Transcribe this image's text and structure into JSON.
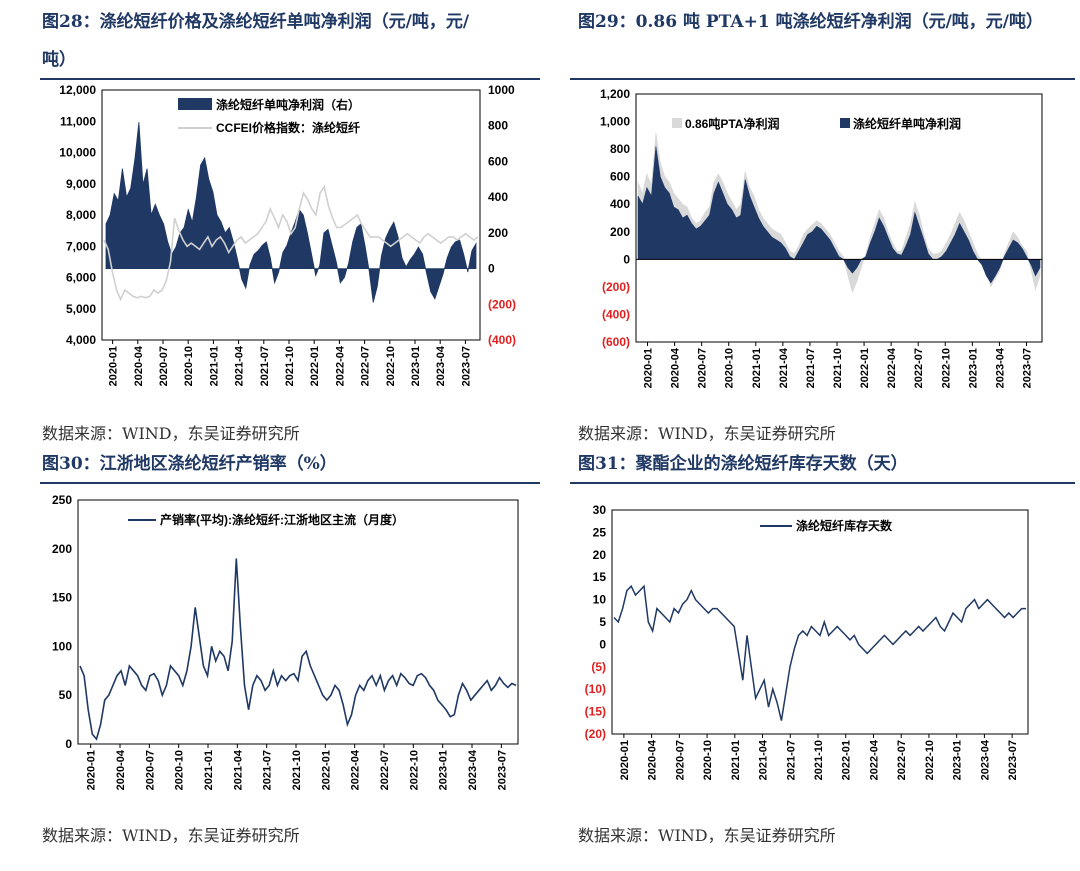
{
  "page": {
    "sources": [
      "数据来源：WIND，东吴证券研究所",
      "数据来源：WIND，东吴证券研究所",
      "数据来源：WIND，东吴证券研究所",
      "数据来源：WIND，东吴证券研究所"
    ]
  },
  "chart_data": [
    {
      "id": "fig28",
      "heading": "图28：涤纶短纤价格及涤纶短纤单吨净利润（元/吨，元/",
      "heading_cont": "吨）",
      "type": "area+line",
      "series": [
        {
          "name": "涤纶短纤单吨净利润（右）",
          "kind": "area",
          "axis": "right",
          "color": "#1f3864",
          "values": [
            250,
            300,
            420,
            380,
            560,
            400,
            450,
            610,
            820,
            470,
            560,
            300,
            360,
            300,
            250,
            150,
            80,
            120,
            200,
            230,
            330,
            260,
            400,
            580,
            620,
            500,
            430,
            300,
            260,
            200,
            230,
            150,
            50,
            -60,
            -110,
            20,
            80,
            100,
            130,
            150,
            60,
            -80,
            -20,
            90,
            130,
            200,
            260,
            330,
            300,
            200,
            80,
            -40,
            20,
            200,
            220,
            130,
            40,
            -80,
            -50,
            30,
            150,
            230,
            250,
            130,
            -10,
            -190,
            -100,
            70,
            170,
            220,
            260,
            180,
            60,
            10,
            50,
            80,
            120,
            80,
            -30,
            -130,
            -170,
            -100,
            -30,
            60,
            120,
            150,
            160,
            80,
            -20,
            100,
            140
          ]
        },
        {
          "name": "CCFEI价格指数：涤纶短纤",
          "kind": "line",
          "axis": "left",
          "color": "#d0d0d0",
          "values": [
            7200,
            6900,
            6200,
            5600,
            5300,
            5600,
            5500,
            5400,
            5350,
            5400,
            5350,
            5400,
            5600,
            5500,
            5600,
            5900,
            6500,
            7900,
            7500,
            7200,
            7000,
            7100,
            7000,
            6900,
            7100,
            7300,
            7000,
            7200,
            7300,
            7100,
            6800,
            7000,
            7200,
            7300,
            7100,
            7200,
            7300,
            7400,
            7600,
            7800,
            8200,
            7900,
            7600,
            8000,
            7800,
            7400,
            7600,
            8200,
            8700,
            8500,
            8200,
            8000,
            8700,
            8900,
            8300,
            7900,
            7600,
            7600,
            7700,
            7800,
            7900,
            8000,
            7700,
            7500,
            7300,
            7300,
            7300,
            7200,
            7100,
            7000,
            7100,
            7200,
            7300,
            7400,
            7300,
            7200,
            7100,
            7300,
            7400,
            7300,
            7200,
            7100,
            7200,
            7300,
            7300,
            7200,
            7300,
            7400,
            7300,
            7200,
            7300
          ]
        }
      ],
      "y_left": {
        "min": 4000,
        "max": 12000,
        "ticks": [
          "4,000",
          "5,000",
          "6,000",
          "7,000",
          "8,000",
          "9,000",
          "10,000",
          "11,000",
          "12,000"
        ]
      },
      "y_right": {
        "min": -400,
        "max": 1000,
        "ticks": [
          "(400)",
          "(200)",
          "0",
          "200",
          "400",
          "600",
          "800",
          "1000"
        ]
      },
      "x_ticks": [
        "2020-01",
        "2020-04",
        "2020-07",
        "2020-10",
        "2021-01",
        "2021-04",
        "2021-07",
        "2021-10",
        "2022-01",
        "2022-04",
        "2022-07",
        "2022-10",
        "2023-01",
        "2023-04",
        "2023-07"
      ]
    },
    {
      "id": "fig29",
      "heading": "图29：0.86 吨 PTA+1 吨涤纶短纤净利润（元/吨，元/吨）",
      "type": "area",
      "series": [
        {
          "name": "0.86吨PTA净利润",
          "kind": "area",
          "color": "#d9d9d9",
          "values": [
            560,
            480,
            620,
            540,
            920,
            700,
            600,
            560,
            480,
            440,
            400,
            380,
            300,
            260,
            280,
            340,
            380,
            560,
            620,
            560,
            480,
            420,
            360,
            400,
            640,
            520,
            460,
            360,
            300,
            260,
            220,
            200,
            180,
            120,
            60,
            40,
            100,
            180,
            220,
            250,
            280,
            260,
            220,
            180,
            120,
            60,
            20,
            -120,
            -240,
            -160,
            -60,
            40,
            160,
            260,
            360,
            300,
            200,
            120,
            60,
            60,
            160,
            260,
            420,
            320,
            180,
            80,
            40,
            40,
            60,
            120,
            180,
            260,
            340,
            280,
            200,
            120,
            40,
            -20,
            -100,
            -200,
            -140,
            -80,
            40,
            120,
            200,
            160,
            100,
            60,
            -80,
            -220,
            -120
          ]
        },
        {
          "name": "涤纶短纤单吨净利润",
          "kind": "area",
          "color": "#1f3864",
          "values": [
            460,
            400,
            520,
            460,
            820,
            600,
            520,
            480,
            380,
            360,
            300,
            320,
            260,
            220,
            240,
            280,
            320,
            480,
            560,
            480,
            400,
            360,
            300,
            320,
            580,
            460,
            380,
            300,
            240,
            200,
            160,
            140,
            120,
            80,
            20,
            0,
            60,
            120,
            180,
            200,
            240,
            220,
            180,
            140,
            80,
            20,
            0,
            -60,
            -100,
            -60,
            0,
            20,
            120,
            200,
            300,
            240,
            160,
            80,
            40,
            30,
            100,
            180,
            340,
            240,
            140,
            40,
            0,
            0,
            20,
            60,
            120,
            180,
            260,
            200,
            140,
            60,
            0,
            -40,
            -120,
            -170,
            -120,
            -60,
            20,
            80,
            140,
            120,
            80,
            20,
            -40,
            -120,
            -60
          ]
        }
      ],
      "y": {
        "min": -600,
        "max": 1200,
        "ticks": [
          "(600)",
          "(400)",
          "(200)",
          "0",
          "200",
          "400",
          "600",
          "800",
          "1,000",
          "1,200"
        ]
      },
      "x_ticks": [
        "2020-01",
        "2020-04",
        "2020-07",
        "2020-10",
        "2021-01",
        "2021-04",
        "2021-07",
        "2021-10",
        "2022-01",
        "2022-04",
        "2022-07",
        "2022-10",
        "2023-01",
        "2023-04",
        "2023-07"
      ]
    },
    {
      "id": "fig30",
      "heading": "图30：江浙地区涤纶短纤产销率（%）",
      "type": "line",
      "series": [
        {
          "name": "产销率(平均):涤纶短纤:江浙地区主流（月度）",
          "color": "#1f3864",
          "values": [
            80,
            70,
            35,
            10,
            5,
            20,
            45,
            50,
            60,
            70,
            75,
            60,
            80,
            75,
            70,
            60,
            55,
            70,
            72,
            65,
            50,
            60,
            80,
            75,
            70,
            60,
            75,
            100,
            140,
            110,
            80,
            70,
            100,
            85,
            95,
            90,
            75,
            105,
            190,
            120,
            60,
            35,
            60,
            70,
            65,
            55,
            60,
            75,
            60,
            70,
            65,
            70,
            72,
            65,
            90,
            95,
            80,
            70,
            60,
            50,
            45,
            50,
            60,
            55,
            40,
            20,
            30,
            50,
            60,
            55,
            65,
            70,
            60,
            70,
            55,
            65,
            70,
            60,
            72,
            68,
            62,
            60,
            70,
            72,
            68,
            60,
            55,
            45,
            40,
            35,
            28,
            30,
            50,
            62,
            55,
            45,
            50,
            55,
            60,
            65,
            55,
            60,
            68,
            62,
            58,
            62,
            60
          ]
        }
      ],
      "y": {
        "min": 0,
        "max": 250,
        "ticks": [
          "0",
          "50",
          "100",
          "150",
          "200",
          "250"
        ]
      },
      "x_ticks": [
        "2020-01",
        "2020-04",
        "2020-07",
        "2020-10",
        "2021-01",
        "2021-04",
        "2021-07",
        "2021-10",
        "2022-01",
        "2022-04",
        "2022-07",
        "2022-10",
        "2023-01",
        "2023-04",
        "2023-07"
      ]
    },
    {
      "id": "fig31",
      "heading": "图31：聚酯企业的涤纶短纤库存天数（天）",
      "type": "line",
      "series": [
        {
          "name": "涤纶短纤库存天数",
          "color": "#1f3864",
          "values": [
            6,
            5,
            8,
            12,
            13,
            11,
            12,
            13,
            5,
            3,
            8,
            7,
            6,
            5,
            8,
            7,
            9,
            10,
            12,
            10,
            9,
            8,
            7,
            8,
            8,
            7,
            6,
            5,
            4,
            -2,
            -8,
            2,
            -5,
            -12,
            -10,
            -8,
            -14,
            -10,
            -13,
            -17,
            -11,
            -5,
            -1,
            2,
            3,
            2,
            4,
            3,
            2,
            5,
            2,
            3,
            4,
            3,
            2,
            1,
            2,
            0,
            -1,
            -2,
            -1,
            0,
            1,
            2,
            1,
            0,
            1,
            2,
            3,
            2,
            3,
            4,
            3,
            4,
            5,
            6,
            4,
            3,
            5,
            7,
            6,
            5,
            8,
            9,
            10,
            8,
            9,
            10,
            9,
            8,
            7,
            6,
            7,
            6,
            7,
            8,
            8
          ]
        }
      ],
      "y": {
        "min": -20,
        "max": 30,
        "ticks": [
          "(20)",
          "(15)",
          "(10)",
          "(5)",
          "0",
          "5",
          "10",
          "15",
          "20",
          "25",
          "30"
        ]
      },
      "x_ticks": [
        "2020-01",
        "2020-04",
        "2020-07",
        "2020-10",
        "2021-01",
        "2021-04",
        "2021-07",
        "2021-10",
        "2022-01",
        "2022-04",
        "2022-07",
        "2022-10",
        "2023-01",
        "2023-04",
        "2023-07"
      ]
    }
  ]
}
